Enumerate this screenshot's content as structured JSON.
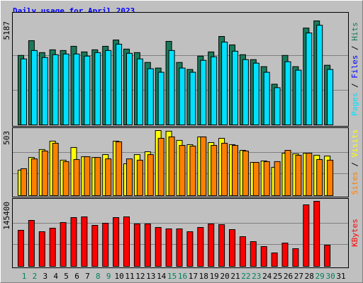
{
  "title": "Daily usage for April 2023",
  "legend_separator": " / ",
  "chart_data": [
    {
      "type": "bar",
      "ylim": [
        0,
        5187
      ],
      "yticks": [
        5187
      ],
      "series": [
        {
          "name": "Hits",
          "color": "#1a7a5a",
          "values": [
            3465,
            4200,
            3605,
            3745,
            3710,
            3920,
            3640,
            3745,
            3920,
            4235,
            3780,
            3605,
            3115,
            2835,
            4165,
            3115,
            2765,
            3430,
            3640,
            4410,
            3990,
            3500,
            3255,
            2905,
            2030,
            3465,
            2905,
            4830,
            5187,
            2975,
            null
          ]
        },
        {
          "name": "Pages",
          "color": "#00e0ff",
          "values": [
            3290,
            3710,
            3360,
            3500,
            3535,
            3535,
            3430,
            3605,
            3710,
            4025,
            3570,
            3290,
            2800,
            2625,
            3710,
            2835,
            2625,
            3220,
            3395,
            4130,
            3675,
            3255,
            3080,
            2625,
            1855,
            3150,
            2730,
            4585,
            4970,
            2765,
            null
          ]
        }
      ],
      "extra_label": {
        "text": "Files",
        "color": "#0000ff"
      }
    },
    {
      "type": "bar",
      "ylim": [
        0,
        503
      ],
      "yticks": [
        503
      ],
      "series": [
        {
          "name": "Visits",
          "color": "#ffff00",
          "values": [
            197,
            295,
            356,
            421,
            274,
            372,
            301,
            295,
            317,
            421,
            246,
            317,
            339,
            503,
            498,
            427,
            394,
            454,
            410,
            443,
            394,
            350,
            257,
            268,
            219,
            328,
            323,
            328,
            312,
            306,
            null
          ]
        },
        {
          "name": "Sites",
          "color": "#ff8000",
          "values": [
            208,
            284,
            345,
            405,
            263,
            279,
            301,
            295,
            284,
            416,
            284,
            274,
            317,
            443,
            454,
            388,
            383,
            454,
            388,
            405,
            388,
            345,
            257,
            263,
            263,
            350,
            312,
            328,
            279,
            274,
            null
          ]
        }
      ]
    },
    {
      "type": "bar",
      "ylim": [
        0,
        145400
      ],
      "yticks": [
        145400
      ],
      "categories": [
        "1",
        "2",
        "3",
        "4",
        "5",
        "6",
        "7",
        "8",
        "9",
        "10",
        "11",
        "12",
        "13",
        "14",
        "15",
        "16",
        "17",
        "18",
        "19",
        "20",
        "21",
        "22",
        "23",
        "24",
        "25",
        "26",
        "27",
        "28",
        "29",
        "30",
        "31"
      ],
      "category_colors": [
        "#00805c",
        "#00805c",
        "#000000",
        "#000000",
        "#000000",
        "#000000",
        "#000000",
        "#00805c",
        "#00805c",
        "#000000",
        "#000000",
        "#000000",
        "#000000",
        "#000000",
        "#00805c",
        "#00805c",
        "#000000",
        "#000000",
        "#000000",
        "#000000",
        "#000000",
        "#00805c",
        "#00805c",
        "#000000",
        "#000000",
        "#000000",
        "#000000",
        "#000000",
        "#00805c",
        "#00805c",
        "#000000"
      ],
      "series": [
        {
          "name": "KBytes",
          "color": "#ff0000",
          "values": [
            80580,
            102700,
            77420,
            85320,
            97960,
            109020,
            110600,
            91640,
            96380,
            109020,
            110600,
            94800,
            94800,
            86900,
            83740,
            83740,
            77420,
            86900,
            94800,
            93220,
            82160,
            66360,
            55300,
            44240,
            30020,
            52140,
            39500,
            137460,
            145400,
            47400,
            null
          ]
        }
      ]
    }
  ]
}
